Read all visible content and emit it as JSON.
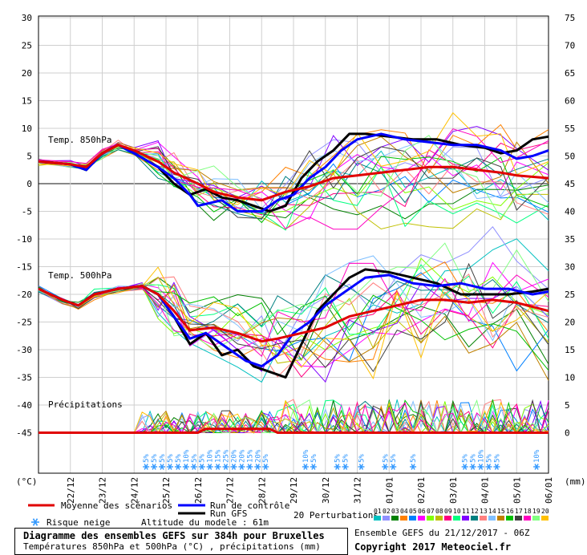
{
  "chart_data": {
    "type": "line",
    "x_dates": [
      "22/12",
      "23/12",
      "24/12",
      "25/12",
      "26/12",
      "27/12",
      "28/12",
      "29/12",
      "30/12",
      "31/12",
      "01/01",
      "02/01",
      "03/01",
      "04/01",
      "05/01",
      "06/01"
    ],
    "left_axis_unit": "(°C)",
    "right_axis_unit": "(mm)",
    "left_ticks": [
      30,
      25,
      20,
      15,
      10,
      5,
      0,
      -5,
      -10,
      -15,
      -20,
      -25,
      -30,
      -35,
      -40,
      -45
    ],
    "right_ticks": [
      75,
      70,
      65,
      60,
      55,
      50,
      45,
      40,
      35,
      30,
      25,
      20,
      15,
      10,
      5,
      0
    ],
    "panel_labels": {
      "t850": "Temp. 850hPa",
      "t500": "Temp. 500hPa",
      "precip": "Précipitations"
    },
    "series_850": [
      {
        "name": "Moyenne des scénarios",
        "color": "#e00000",
        "points": [
          [
            0,
            4
          ],
          [
            8,
            3.5
          ],
          [
            12,
            3
          ],
          [
            16,
            5.5
          ],
          [
            20,
            7
          ],
          [
            24,
            6
          ],
          [
            30,
            4
          ],
          [
            34,
            2
          ],
          [
            40,
            0
          ],
          [
            44,
            -1.5
          ],
          [
            50,
            -2.5
          ],
          [
            56,
            -3
          ],
          [
            62,
            -1.5
          ],
          [
            68,
            -0.5
          ],
          [
            74,
            1
          ],
          [
            80,
            1.5
          ],
          [
            86,
            2
          ],
          [
            92,
            2.5
          ],
          [
            98,
            3
          ],
          [
            104,
            3
          ],
          [
            110,
            2.5
          ],
          [
            116,
            2
          ],
          [
            120,
            1.5
          ],
          [
            128,
            1
          ]
        ]
      },
      {
        "name": "Run de contrôle",
        "color": "#0000ff",
        "points": [
          [
            0,
            4
          ],
          [
            8,
            3.5
          ],
          [
            12,
            2.5
          ],
          [
            16,
            5.5
          ],
          [
            20,
            7
          ],
          [
            24,
            5.5
          ],
          [
            30,
            3
          ],
          [
            34,
            1
          ],
          [
            38,
            -2
          ],
          [
            40,
            -4
          ],
          [
            46,
            -3
          ],
          [
            50,
            -5
          ],
          [
            56,
            -5
          ],
          [
            60,
            -3
          ],
          [
            64,
            -2
          ],
          [
            68,
            1
          ],
          [
            72,
            3
          ],
          [
            76,
            6
          ],
          [
            80,
            8
          ],
          [
            86,
            9
          ],
          [
            92,
            8
          ],
          [
            98,
            7.5
          ],
          [
            104,
            7
          ],
          [
            110,
            7
          ],
          [
            116,
            6
          ],
          [
            120,
            4.5
          ],
          [
            124,
            5
          ],
          [
            128,
            6
          ]
        ]
      },
      {
        "name": "Run GFS",
        "color": "#000000",
        "points": [
          [
            0,
            4
          ],
          [
            8,
            3.5
          ],
          [
            12,
            2.5
          ],
          [
            16,
            5.5
          ],
          [
            20,
            7
          ],
          [
            24,
            5.5
          ],
          [
            30,
            3
          ],
          [
            34,
            0
          ],
          [
            38,
            -2
          ],
          [
            42,
            -1
          ],
          [
            46,
            -2.5
          ],
          [
            50,
            -3
          ],
          [
            54,
            -4
          ],
          [
            58,
            -5
          ],
          [
            62,
            -4
          ],
          [
            66,
            1
          ],
          [
            70,
            4
          ],
          [
            74,
            6
          ],
          [
            78,
            9
          ],
          [
            82,
            9
          ],
          [
            88,
            8.5
          ],
          [
            94,
            8
          ],
          [
            100,
            8
          ],
          [
            106,
            7
          ],
          [
            112,
            6.5
          ],
          [
            116,
            5.5
          ],
          [
            120,
            6
          ],
          [
            124,
            8
          ],
          [
            128,
            8.5
          ]
        ]
      }
    ],
    "series_500": [
      {
        "name": "Moyenne des scénarios",
        "color": "#e00000",
        "points": [
          [
            0,
            -19
          ],
          [
            6,
            -21
          ],
          [
            10,
            -22
          ],
          [
            14,
            -20
          ],
          [
            20,
            -19
          ],
          [
            26,
            -18.5
          ],
          [
            30,
            -20
          ],
          [
            34,
            -23
          ],
          [
            38,
            -26.5
          ],
          [
            44,
            -26
          ],
          [
            50,
            -27
          ],
          [
            56,
            -28.5
          ],
          [
            60,
            -28
          ],
          [
            66,
            -27
          ],
          [
            72,
            -26
          ],
          [
            78,
            -24
          ],
          [
            84,
            -23
          ],
          [
            90,
            -22
          ],
          [
            96,
            -21
          ],
          [
            102,
            -21
          ],
          [
            108,
            -21.5
          ],
          [
            114,
            -21
          ],
          [
            120,
            -21.5
          ],
          [
            128,
            -23
          ]
        ]
      },
      {
        "name": "Run de contrôle",
        "color": "#0000ff",
        "points": [
          [
            0,
            -19
          ],
          [
            6,
            -21
          ],
          [
            10,
            -22
          ],
          [
            14,
            -20
          ],
          [
            20,
            -19
          ],
          [
            26,
            -18.5
          ],
          [
            30,
            -20
          ],
          [
            34,
            -24
          ],
          [
            38,
            -28
          ],
          [
            42,
            -27
          ],
          [
            48,
            -30
          ],
          [
            52,
            -32
          ],
          [
            56,
            -33
          ],
          [
            60,
            -31
          ],
          [
            64,
            -27
          ],
          [
            68,
            -25
          ],
          [
            72,
            -22
          ],
          [
            76,
            -20
          ],
          [
            82,
            -17
          ],
          [
            88,
            -16.5
          ],
          [
            94,
            -18
          ],
          [
            100,
            -18.5
          ],
          [
            106,
            -18
          ],
          [
            112,
            -19
          ],
          [
            118,
            -19
          ],
          [
            124,
            -20
          ],
          [
            128,
            -19.5
          ]
        ]
      },
      {
        "name": "Run GFS",
        "color": "#000000",
        "points": [
          [
            0,
            -19
          ],
          [
            6,
            -21
          ],
          [
            10,
            -22
          ],
          [
            14,
            -20
          ],
          [
            20,
            -19
          ],
          [
            26,
            -18.5
          ],
          [
            30,
            -20
          ],
          [
            34,
            -24
          ],
          [
            38,
            -29
          ],
          [
            42,
            -27
          ],
          [
            46,
            -31
          ],
          [
            50,
            -30
          ],
          [
            54,
            -33
          ],
          [
            58,
            -34
          ],
          [
            62,
            -35
          ],
          [
            66,
            -29
          ],
          [
            70,
            -23
          ],
          [
            74,
            -20
          ],
          [
            78,
            -17
          ],
          [
            82,
            -15.5
          ],
          [
            88,
            -16
          ],
          [
            94,
            -17
          ],
          [
            100,
            -18
          ],
          [
            106,
            -20
          ],
          [
            112,
            -20
          ],
          [
            118,
            -20
          ],
          [
            124,
            -19.5
          ],
          [
            128,
            -19
          ]
        ]
      }
    ],
    "snow_risk": [
      {
        "x": 27,
        "label": "5%"
      },
      {
        "x": 29,
        "label": "5%"
      },
      {
        "x": 31,
        "label": "5%"
      },
      {
        "x": 33,
        "label": "5%"
      },
      {
        "x": 35,
        "label": "5%"
      },
      {
        "x": 37,
        "label": "10%"
      },
      {
        "x": 39,
        "label": "5%"
      },
      {
        "x": 41,
        "label": "5%"
      },
      {
        "x": 43,
        "label": "10%"
      },
      {
        "x": 45,
        "label": "15%"
      },
      {
        "x": 47,
        "label": "25%"
      },
      {
        "x": 49,
        "label": "20%"
      },
      {
        "x": 51,
        "label": "20%"
      },
      {
        "x": 53,
        "label": "15%"
      },
      {
        "x": 55,
        "label": "20%"
      },
      {
        "x": 57,
        "label": "5%"
      },
      {
        "x": 67,
        "label": "10%"
      },
      {
        "x": 69,
        "label": "5%"
      },
      {
        "x": 75,
        "label": "5%"
      },
      {
        "x": 77,
        "label": "5%"
      },
      {
        "x": 81,
        "label": "5%"
      },
      {
        "x": 87,
        "label": "5%"
      },
      {
        "x": 89,
        "label": "5%"
      },
      {
        "x": 94,
        "label": "5%"
      },
      {
        "x": 107,
        "label": "5%"
      },
      {
        "x": 109,
        "label": "5%"
      },
      {
        "x": 111,
        "label": "10%"
      },
      {
        "x": 113,
        "label": "5%"
      },
      {
        "x": 115,
        "label": "5%"
      },
      {
        "x": 125,
        "label": "10%"
      }
    ]
  },
  "legend": {
    "mean_label": "Moyenne des scénarios",
    "control_label": "Run de contrôle",
    "gfs_label": "Run GFS",
    "snow_label": "Risque neige",
    "altitude_label": "Altitude du modele : 61m",
    "perturbations_label": "20 Perturbations",
    "perturbation_ids": [
      "01",
      "02",
      "03",
      "04",
      "05",
      "06",
      "07",
      "08",
      "09",
      "10",
      "11",
      "12",
      "13",
      "14",
      "15",
      "16",
      "17",
      "18",
      "19",
      "20"
    ],
    "perturbation_colors": [
      "#00c0c0",
      "#9090ff",
      "#008000",
      "#ff8000",
      "#0080ff",
      "#ff00ff",
      "#80ff00",
      "#c0c000",
      "#ff0080",
      "#00ff80",
      "#8000ff",
      "#008080",
      "#ff8080",
      "#80c0ff",
      "#c08000",
      "#00c000",
      "#404040",
      "#ff00c0",
      "#80ff80",
      "#ffc000"
    ]
  },
  "colors": {
    "mean": "#e00000",
    "control": "#0000ff",
    "gfs": "#000000",
    "snow": "#3399ff"
  },
  "footer": {
    "title": "Diagramme des ensembles GEFS sur 384h pour Bruxelles",
    "subtitle": "Températures 850hPa et 500hPa (°C) , précipitations (mm)",
    "run_info": "Ensemble GEFS du 21/12/2017 - 06Z",
    "copyright": "Copyright 2017 Meteociel.fr"
  }
}
